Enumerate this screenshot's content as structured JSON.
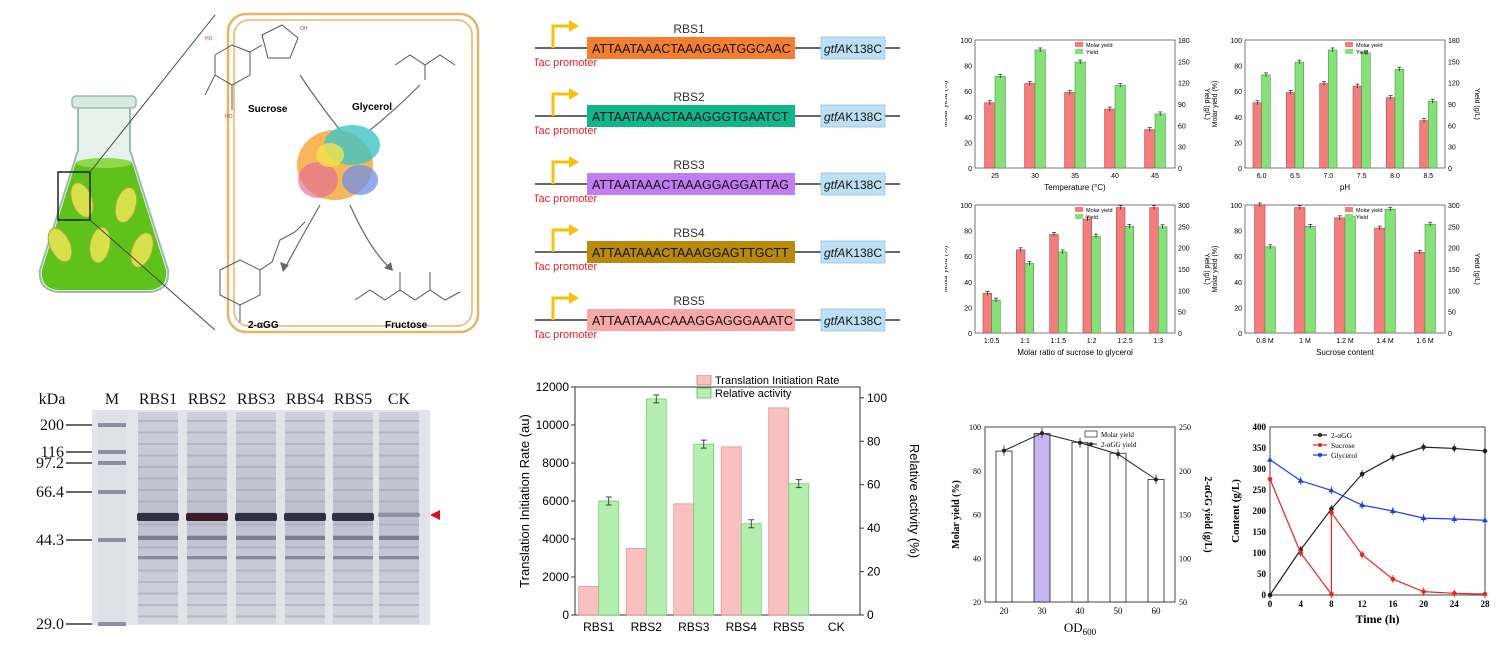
{
  "scheme": {
    "labels": {
      "sucrose": "Sucrose",
      "glycerol": "Glycerol",
      "product": "2-αGG",
      "fructose": "Fructose"
    },
    "colors": {
      "flask_liquid": "#5fc21a",
      "cell": "#d6e04a",
      "membrane": "#e6b36a"
    }
  },
  "constructs": {
    "promoter_label": "Tac promoter",
    "gene_italic": "gtfA",
    "gene_suffix": "K138C",
    "items": [
      {
        "name": "RBS1",
        "seq": "ATTAATAAACTAAAGGATGGCAAC",
        "color": "#f47f2f"
      },
      {
        "name": "RBS2",
        "seq": "ATTAATAAACTAAAGGGTGAATCT",
        "color": "#11b58a"
      },
      {
        "name": "RBS3",
        "seq": "ATTAATAAACTAAAGGAGGATTAG",
        "color": "#c27df2"
      },
      {
        "name": "RBS4",
        "seq": "ATTAATAAACTAAAGGAGTTGCTT",
        "color": "#b78a0b"
      },
      {
        "name": "RBS5",
        "seq": "ATTAATAAACAAAGGAGGGAAATC",
        "color": "#f9a7a7"
      }
    ]
  },
  "gel": {
    "unit": "kDa",
    "lanes": [
      "M",
      "RBS1",
      "RBS2",
      "RBS3",
      "RBS4",
      "RBS5",
      "CK"
    ],
    "markers": [
      "200",
      "116",
      "97.2",
      "66.4",
      "44.3",
      "29.0"
    ]
  },
  "chart_data": [
    {
      "type": "bar",
      "id": "temperature",
      "xlabel": "Temperature (°C)",
      "ylabel": "Molar yield (%)",
      "y2label": "Yield (g/L)",
      "categories": [
        "25",
        "30",
        "35",
        "40",
        "45"
      ],
      "ylim": [
        0,
        100
      ],
      "y2lim": [
        0,
        180
      ],
      "legend": [
        "Molar yield",
        "Yield"
      ],
      "series": [
        {
          "name": "Molar yield",
          "values": [
            51,
            66,
            59,
            46,
            30
          ]
        },
        {
          "name": "Yield",
          "values": [
            129,
            166,
            149,
            116,
            76
          ]
        }
      ]
    },
    {
      "type": "bar",
      "id": "ph",
      "xlabel": "pH",
      "ylabel": "Molar yield (%)",
      "y2label": "Yield (g/L)",
      "categories": [
        "6.0",
        "6.5",
        "7.0",
        "7.5",
        "8.0",
        "8.5"
      ],
      "ylim": [
        0,
        100
      ],
      "y2lim": [
        0,
        180
      ],
      "legend": [
        "Molar yield",
        "Yield"
      ],
      "series": [
        {
          "name": "Molar yield",
          "values": [
            51,
            59,
            66,
            64,
            55,
            37
          ]
        },
        {
          "name": "Yield",
          "values": [
            131,
            149,
            166,
            162,
            139,
            94
          ]
        }
      ]
    },
    {
      "type": "bar",
      "id": "ratio",
      "xlabel": "Molar ratio of sucrose to glycerol",
      "ylabel": "Molar yield (%)",
      "y2label": "Yield (g/L)",
      "categories": [
        "1:0.5",
        "1:1",
        "1:1.5",
        "1:2",
        "1:2.5",
        "1:3"
      ],
      "ylim": [
        0,
        100
      ],
      "y2lim": [
        0,
        300
      ],
      "legend": [
        "Molar yield",
        "Yield"
      ],
      "series": [
        {
          "name": "Molar yield",
          "values": [
            31,
            65,
            77,
            89,
            98,
            98
          ]
        },
        {
          "name": "Yield",
          "values": [
            77,
            163,
            190,
            227,
            250,
            249
          ]
        }
      ]
    },
    {
      "type": "bar",
      "id": "sucrose",
      "xlabel": "Sucrose content",
      "ylabel": "Molar yield (%)",
      "y2label": "Yield (g/L)",
      "categories": [
        "0.8 M",
        "1 M",
        "1.2 M",
        "1.4 M",
        "1.6 M"
      ],
      "ylim": [
        0,
        100
      ],
      "y2lim": [
        0,
        300
      ],
      "legend": [
        "Molar yield",
        "Yield"
      ],
      "series": [
        {
          "name": "Molar yield",
          "values": [
            100,
            98,
            90,
            82,
            63
          ]
        },
        {
          "name": "Yield",
          "values": [
            202,
            250,
            273,
            290,
            255
          ]
        }
      ]
    },
    {
      "type": "bar",
      "id": "rbs_activity",
      "ylabel": "Translation Initiation Rate (au)",
      "y2label": "Relative activity (%)",
      "categories": [
        "RBS1",
        "RBS2",
        "RBS3",
        "RBS4",
        "RBS5",
        "CK"
      ],
      "ylim": [
        0,
        12000
      ],
      "y2lim": [
        0,
        105
      ],
      "yticks": [
        0,
        2000,
        4000,
        6000,
        8000,
        10000,
        12000
      ],
      "y2ticks": [
        0,
        20,
        40,
        60,
        80,
        100
      ],
      "series": [
        {
          "name": "Translation Initiation Rate",
          "values": [
            1500,
            3500,
            5850,
            8850,
            10900,
            0
          ]
        },
        {
          "name": "Relative activity",
          "values": [
            52.5,
            99.5,
            78.7,
            42,
            60.5,
            0
          ]
        }
      ]
    },
    {
      "type": "bar",
      "id": "od600",
      "xlabel": "OD600",
      "ylabel": "Molar yield (%)",
      "y2label": "2-αGG yield (g/L)",
      "categories": [
        "20",
        "30",
        "40",
        "50",
        "60"
      ],
      "ylim": [
        20,
        100
      ],
      "y2lim": [
        50,
        250
      ],
      "yticks": [
        20,
        40,
        60,
        80,
        100
      ],
      "y2ticks": [
        50,
        100,
        150,
        200,
        250
      ],
      "series": [
        {
          "name": "Molar yield",
          "values": [
            89,
            97,
            93,
            88,
            76
          ]
        },
        {
          "name": "2-αGG yield",
          "values": [
            223,
            243,
            232,
            219,
            190
          ]
        }
      ]
    },
    {
      "type": "line",
      "id": "time_course",
      "xlabel": "Time (h)",
      "ylabel": "Content (g/L)",
      "xlim": [
        0,
        28
      ],
      "ylim": [
        0,
        400
      ],
      "xticks": [
        0,
        4,
        8,
        12,
        16,
        20,
        24,
        28
      ],
      "yticks": [
        0,
        50,
        100,
        150,
        200,
        250,
        300,
        350,
        400
      ],
      "legend": "top-left",
      "series": [
        {
          "name": "2-αGG",
          "color": "#222222",
          "x": [
            0,
            4,
            8,
            12,
            16,
            20,
            24,
            28
          ],
          "y": [
            0,
            108,
            205,
            288,
            328,
            352,
            349,
            343
          ]
        },
        {
          "name": "Sucrose",
          "color": "#e8261f",
          "x": [
            0,
            4,
            8,
            8,
            12,
            16,
            20,
            24,
            28
          ],
          "y": [
            276,
            100,
            2,
            196,
            96,
            38,
            8,
            4,
            2
          ]
        },
        {
          "name": "Glycerol",
          "color": "#1f3ce8",
          "x": [
            0,
            4,
            8,
            12,
            16,
            20,
            24,
            28
          ],
          "y": [
            322,
            272,
            249,
            214,
            200,
            183,
            181,
            178
          ]
        }
      ]
    }
  ]
}
